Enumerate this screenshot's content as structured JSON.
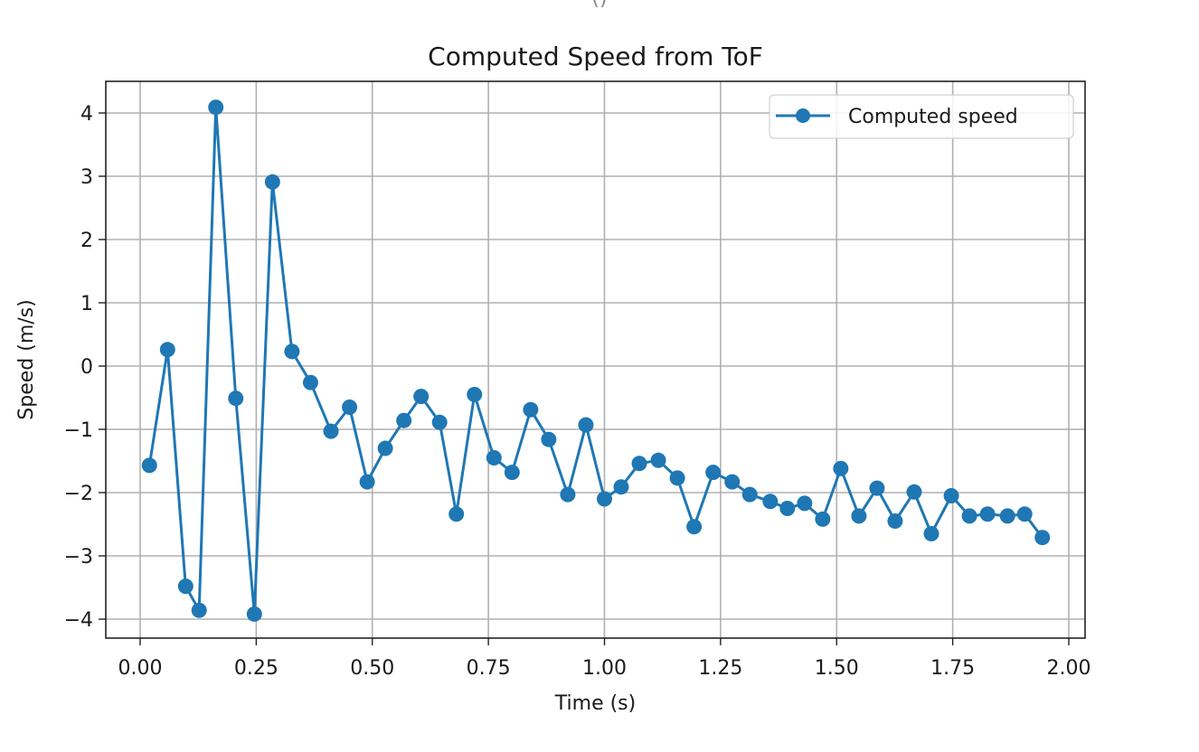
{
  "page": {
    "top_fragment": "()"
  },
  "chart_data": {
    "type": "line",
    "title": "Computed Speed from ToF",
    "xlabel": "Time (s)",
    "ylabel": "Speed (m/s)",
    "xlim": [
      -0.075,
      2.035
    ],
    "ylim": [
      -4.3,
      4.5
    ],
    "grid": true,
    "legend": {
      "position": "upper right",
      "entries": [
        "Computed speed"
      ]
    },
    "xticks": [
      0.0,
      0.25,
      0.5,
      0.75,
      1.0,
      1.25,
      1.5,
      1.75,
      2.0
    ],
    "xtick_labels": [
      "0.00",
      "0.25",
      "0.50",
      "0.75",
      "1.00",
      "1.25",
      "1.50",
      "1.75",
      "2.00"
    ],
    "yticks": [
      4,
      3,
      2,
      1,
      0,
      -1,
      -2,
      -3,
      -4
    ],
    "ytick_labels": [
      "4",
      "3",
      "2",
      "1",
      "0",
      "−1",
      "−2",
      "−3",
      "−4"
    ],
    "color": "#1f77b4",
    "series": [
      {
        "name": "Computed speed",
        "marker": "circle",
        "x": [
          0.02,
          0.059,
          0.098,
          0.127,
          0.163,
          0.206,
          0.246,
          0.285,
          0.327,
          0.367,
          0.411,
          0.451,
          0.489,
          0.528,
          0.568,
          0.605,
          0.645,
          0.681,
          0.72,
          0.762,
          0.801,
          0.841,
          0.88,
          0.921,
          0.96,
          1.0,
          1.036,
          1.075,
          1.116,
          1.157,
          1.193,
          1.234,
          1.275,
          1.313,
          1.357,
          1.394,
          1.431,
          1.47,
          1.509,
          1.548,
          1.587,
          1.626,
          1.667,
          1.704,
          1.747,
          1.786,
          1.825,
          1.868,
          1.905,
          1.943
        ],
        "values": [
          -1.57,
          0.26,
          -3.48,
          -3.86,
          4.09,
          -0.51,
          -3.92,
          2.91,
          0.23,
          -0.26,
          -1.03,
          -0.65,
          -1.83,
          -1.3,
          -0.86,
          -0.48,
          -0.89,
          -2.34,
          -0.45,
          -1.45,
          -1.68,
          -0.69,
          -1.16,
          -2.03,
          -0.93,
          -2.1,
          -1.91,
          -1.54,
          -1.49,
          -1.77,
          -2.54,
          -1.68,
          -1.83,
          -2.03,
          -2.14,
          -2.25,
          -2.17,
          -2.42,
          -1.62,
          -2.37,
          -1.93,
          -2.45,
          -1.99,
          -2.65,
          -2.05,
          -2.37,
          -2.34,
          -2.37,
          -2.34,
          -2.71
        ]
      }
    ]
  }
}
